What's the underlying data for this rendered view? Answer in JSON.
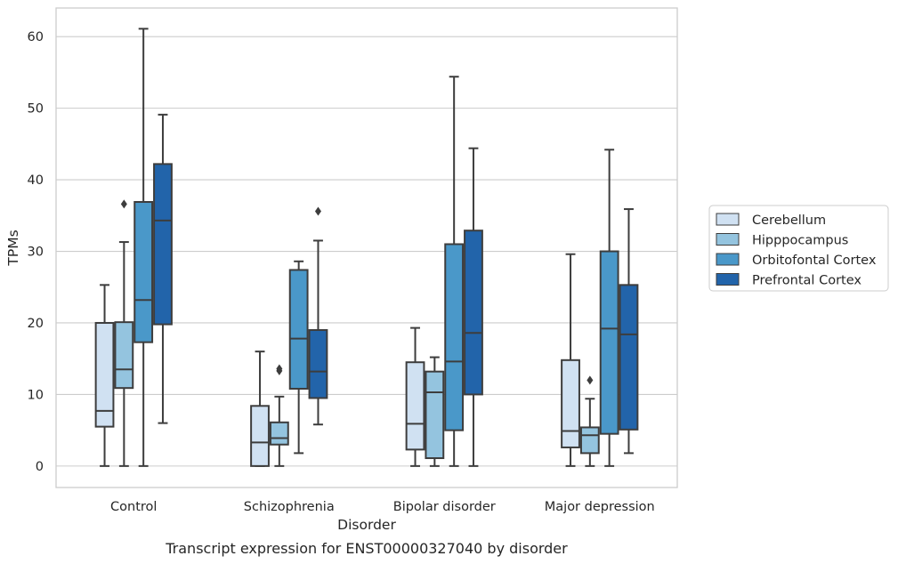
{
  "chart_data": {
    "type": "box",
    "caption": "Transcript expression for ENST00000327040 by disorder",
    "xlabel": "Disorder",
    "ylabel": "TPMs",
    "ylim": [
      -3,
      64
    ],
    "yticks": [
      0,
      10,
      20,
      30,
      40,
      50,
      60
    ],
    "grid": "horizontal",
    "legend_position": "right",
    "categories": [
      "Control",
      "Schizophrenia",
      "Bipolar disorder",
      "Major depression"
    ],
    "series": [
      {
        "name": "Cerebellum",
        "color": "#d0e1f2",
        "boxes": [
          {
            "whisker_low": 0,
            "q1": 5.5,
            "median": 7.7,
            "q3": 20.0,
            "whisker_high": 25.3,
            "outliers": []
          },
          {
            "whisker_low": 0,
            "q1": 0,
            "median": 3.3,
            "q3": 8.4,
            "whisker_high": 16.0,
            "outliers": []
          },
          {
            "whisker_low": 0,
            "q1": 2.3,
            "median": 5.9,
            "q3": 14.5,
            "whisker_high": 19.3,
            "outliers": []
          },
          {
            "whisker_low": 0,
            "q1": 2.6,
            "median": 4.9,
            "q3": 14.8,
            "whisker_high": 29.6,
            "outliers": []
          }
        ]
      },
      {
        "name": "Hipppocampus",
        "color": "#94c4df",
        "boxes": [
          {
            "whisker_low": 0,
            "q1": 10.9,
            "median": 13.5,
            "q3": 20.1,
            "whisker_high": 31.3,
            "outliers": [
              36.6
            ]
          },
          {
            "whisker_low": 0,
            "q1": 3.0,
            "median": 3.9,
            "q3": 6.1,
            "whisker_high": 9.7,
            "outliers": [
              13.3,
              13.6
            ]
          },
          {
            "whisker_low": 0,
            "q1": 1.1,
            "median": 10.3,
            "q3": 13.2,
            "whisker_high": 15.2,
            "outliers": []
          },
          {
            "whisker_low": 0,
            "q1": 1.8,
            "median": 4.3,
            "q3": 5.4,
            "whisker_high": 9.4,
            "outliers": [
              12.0
            ]
          }
        ]
      },
      {
        "name": "Orbitofontal Cortex",
        "color": "#4a98c9",
        "boxes": [
          {
            "whisker_low": 0,
            "q1": 17.3,
            "median": 23.2,
            "q3": 36.9,
            "whisker_high": 61.1,
            "outliers": []
          },
          {
            "whisker_low": 1.8,
            "q1": 10.8,
            "median": 17.8,
            "q3": 27.4,
            "whisker_high": 28.6,
            "outliers": []
          },
          {
            "whisker_low": 0,
            "q1": 5.0,
            "median": 14.6,
            "q3": 31.0,
            "whisker_high": 54.4,
            "outliers": []
          },
          {
            "whisker_low": 0,
            "q1": 4.5,
            "median": 19.2,
            "q3": 30.0,
            "whisker_high": 44.2,
            "outliers": []
          }
        ]
      },
      {
        "name": "Prefrontal Cortex",
        "color": "#2264aa",
        "boxes": [
          {
            "whisker_low": 6.0,
            "q1": 19.8,
            "median": 34.3,
            "q3": 42.2,
            "whisker_high": 49.1,
            "outliers": []
          },
          {
            "whisker_low": 5.8,
            "q1": 9.5,
            "median": 13.2,
            "q3": 19.0,
            "whisker_high": 31.5,
            "outliers": [
              35.6
            ]
          },
          {
            "whisker_low": 0,
            "q1": 10.0,
            "median": 18.6,
            "q3": 32.9,
            "whisker_high": 44.4,
            "outliers": []
          },
          {
            "whisker_low": 1.8,
            "q1": 5.1,
            "median": 18.4,
            "q3": 25.3,
            "whisker_high": 35.9,
            "outliers": []
          }
        ]
      }
    ]
  }
}
